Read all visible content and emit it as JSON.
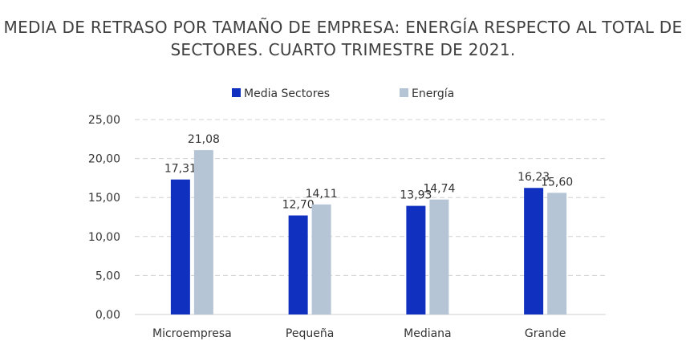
{
  "chart_data": {
    "type": "bar",
    "title": "MEDIA DE RETRASO POR TAMAÑO DE EMPRESA: ENERGÍA RESPECTO AL TOTAL DE SECTORES. CUARTO TRIMESTRE DE 2021.",
    "categories": [
      "Microempresa",
      "Pequeña",
      "Mediana",
      "Grande"
    ],
    "series": [
      {
        "name": "Media Sectores",
        "values": [
          17.31,
          12.7,
          13.93,
          16.23
        ],
        "labels": [
          "17,31",
          "12,70",
          "13,93",
          "16,23"
        ],
        "color": "#1030c0"
      },
      {
        "name": "Energía",
        "values": [
          21.08,
          14.11,
          14.74,
          15.6
        ],
        "labels": [
          "21,08",
          "14,11",
          "14,74",
          "15,60"
        ],
        "color": "#b5c5d6"
      }
    ],
    "ylim": [
      0,
      25
    ],
    "yticks": [
      "0,00",
      "5,00",
      "10,00",
      "15,00",
      "20,00",
      "25,00"
    ],
    "grid": true,
    "legend": "top-center",
    "xlabel": "",
    "ylabel": ""
  }
}
